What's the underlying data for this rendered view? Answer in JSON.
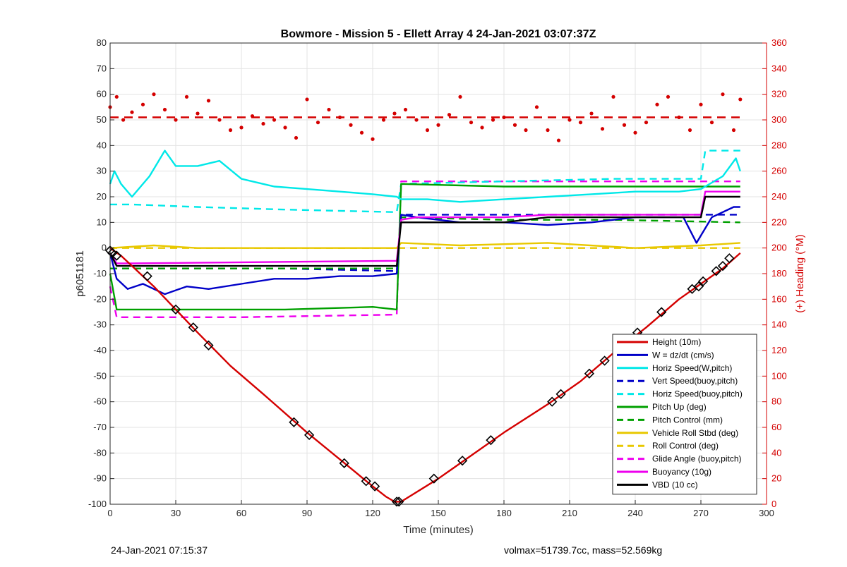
{
  "footer": {
    "left_text": "24-Jan-2021 07:15:37",
    "right_text": "volmax=51739.7cc, mass=52.569kg"
  },
  "chart_data": {
    "type": "line",
    "title": "Bowmore - Mission 5 - Ellett Array 4 24-Jan-2021 03:07:37Z",
    "xlabel": "Time (minutes)",
    "ylabel": "p6051181",
    "y2label": "(+) Heading (°M)",
    "xlim": [
      0,
      300
    ],
    "ylim": [
      -100,
      80
    ],
    "y2lim": [
      0,
      360
    ],
    "xticks": [
      0,
      30,
      60,
      90,
      120,
      150,
      180,
      210,
      240,
      270,
      300
    ],
    "yticks": [
      -100,
      -90,
      -80,
      -70,
      -60,
      -50,
      -40,
      -30,
      -20,
      -10,
      0,
      10,
      20,
      30,
      40,
      50,
      60,
      70,
      80
    ],
    "y2ticks": [
      0,
      20,
      40,
      60,
      80,
      100,
      120,
      140,
      160,
      180,
      200,
      220,
      240,
      260,
      280,
      300,
      320,
      340,
      360
    ],
    "grid": true,
    "legend_position": "bottom-right",
    "colors": {
      "height": "#d40000",
      "w": "#0000c8",
      "cyan": "#00e8e8",
      "green": "#00a000",
      "yellow": "#e8c800",
      "magenta": "#ee00ee",
      "black": "#000000",
      "right_axis": "#d40000"
    },
    "series": [
      {
        "name": "Height (10m)",
        "style": "solid",
        "color": "#d40000",
        "x": [
          0,
          5,
          20,
          40,
          55,
          70,
          90,
          110,
          120,
          126,
          130,
          133,
          150,
          165,
          180,
          200,
          215,
          230,
          245,
          260,
          270,
          280,
          288
        ],
        "y": [
          0,
          -3,
          -15,
          -33,
          -46,
          -57,
          -72,
          -86,
          -93,
          -97,
          -99,
          -99,
          -90,
          -81,
          -72,
          -61,
          -52,
          -41,
          -31,
          -20,
          -14,
          -8,
          -2
        ]
      },
      {
        "name": "W = dz/dt (cm/s)",
        "style": "solid",
        "color": "#0000c8",
        "x": [
          0,
          3,
          8,
          15,
          25,
          35,
          45,
          60,
          75,
          90,
          105,
          120,
          131,
          133,
          140,
          160,
          180,
          200,
          220,
          240,
          262,
          268,
          275,
          285,
          288
        ],
        "y": [
          -2,
          -12,
          -16,
          -14,
          -18,
          -15,
          -16,
          -14,
          -12,
          -12,
          -11,
          -11,
          -10,
          13,
          12,
          10,
          10,
          9,
          10,
          12,
          12,
          2,
          12,
          16,
          16
        ]
      },
      {
        "name": "Horiz Speed(W,pitch)",
        "style": "solid",
        "color": "#00e8e8",
        "x": [
          0,
          2,
          5,
          10,
          18,
          25,
          30,
          40,
          50,
          60,
          75,
          90,
          105,
          120,
          131,
          133,
          145,
          160,
          180,
          200,
          220,
          240,
          260,
          270,
          280,
          286,
          288
        ],
        "y": [
          25,
          30,
          25,
          20,
          28,
          38,
          32,
          32,
          34,
          27,
          24,
          23,
          22,
          21,
          20,
          19,
          19,
          18,
          19,
          20,
          21,
          22,
          22,
          23,
          28,
          35,
          30
        ]
      },
      {
        "name": "Vert Speed(buoy,pitch)",
        "style": "dashed",
        "color": "#0000c8",
        "x": [
          0,
          10,
          40,
          80,
          131,
          133,
          288
        ],
        "y": [
          -8,
          -8,
          -8,
          -8,
          -9,
          13,
          13
        ]
      },
      {
        "name": "Horiz Speed(buoy,pitch)",
        "style": "dashed",
        "color": "#00e8e8",
        "x": [
          0,
          10,
          40,
          80,
          131,
          133,
          180,
          230,
          270,
          272,
          288
        ],
        "y": [
          17,
          17,
          16,
          15,
          14,
          25,
          26,
          27,
          27,
          38,
          38
        ]
      },
      {
        "name": "Pitch Up (deg)",
        "style": "solid",
        "color": "#00a000",
        "x": [
          0,
          3,
          10,
          40,
          80,
          120,
          131,
          133,
          180,
          230,
          270,
          288
        ],
        "y": [
          -10,
          -24,
          -24,
          -24,
          -24,
          -23,
          -24,
          25,
          24,
          24,
          24,
          24
        ]
      },
      {
        "name": "Pitch Control (mm)",
        "style": "dashed",
        "color": "#00a000",
        "x": [
          0,
          10,
          60,
          131,
          133,
          180,
          230,
          288
        ],
        "y": [
          -8,
          -8,
          -8,
          -8,
          12,
          11,
          11,
          10
        ]
      },
      {
        "name": "Vehicle Roll Stbd (deg)",
        "style": "solid",
        "color": "#e8c800",
        "x": [
          0,
          20,
          40,
          60,
          90,
          120,
          131,
          133,
          160,
          200,
          240,
          270,
          288
        ],
        "y": [
          0,
          1,
          0,
          0,
          0,
          0,
          0,
          2,
          1,
          2,
          0,
          1,
          2
        ]
      },
      {
        "name": "Roll Control (deg)",
        "style": "dashed",
        "color": "#e8c800",
        "x": [
          0,
          60,
          131,
          133,
          288
        ],
        "y": [
          0,
          0,
          0,
          0,
          0
        ]
      },
      {
        "name": "Glide Angle (buoy,pitch)",
        "style": "dashed",
        "color": "#ee00ee",
        "x": [
          0,
          3,
          10,
          60,
          131,
          133,
          200,
          270,
          288
        ],
        "y": [
          -15,
          -27,
          -27,
          -27,
          -26,
          26,
          26,
          26,
          26
        ]
      },
      {
        "name": "Buoyancy (10g)",
        "style": "solid",
        "color": "#ee00ee",
        "x": [
          0,
          3,
          10,
          131,
          133,
          140,
          180,
          200,
          270,
          272,
          288
        ],
        "y": [
          -2,
          -6,
          -6,
          -5,
          11,
          12,
          12,
          13,
          13,
          22,
          22
        ]
      },
      {
        "name": "VBD (10 cc)",
        "style": "solid",
        "color": "#000000",
        "x": [
          0,
          3,
          10,
          131,
          133,
          180,
          200,
          270,
          272,
          288
        ],
        "y": [
          -2,
          -7,
          -7,
          -7,
          10,
          10,
          12,
          12,
          20,
          20
        ]
      }
    ],
    "heading": {
      "axis": "right",
      "color": "#d40000",
      "reference_line": 302,
      "x": [
        0,
        3,
        6,
        10,
        15,
        20,
        25,
        30,
        35,
        40,
        45,
        50,
        55,
        60,
        65,
        70,
        75,
        80,
        85,
        90,
        95,
        100,
        105,
        110,
        115,
        120,
        125,
        130,
        135,
        140,
        145,
        150,
        155,
        160,
        165,
        170,
        175,
        180,
        185,
        190,
        195,
        200,
        205,
        210,
        215,
        220,
        225,
        230,
        235,
        240,
        245,
        250,
        255,
        260,
        265,
        270,
        275,
        280,
        285,
        288
      ],
      "y": [
        310,
        318,
        300,
        306,
        312,
        320,
        308,
        300,
        318,
        305,
        315,
        300,
        292,
        294,
        303,
        297,
        300,
        294,
        286,
        316,
        298,
        308,
        302,
        296,
        290,
        285,
        300,
        305,
        308,
        300,
        292,
        296,
        304,
        318,
        298,
        294,
        300,
        302,
        296,
        292,
        310,
        292,
        284,
        300,
        298,
        305,
        293,
        318,
        296,
        290,
        298,
        312,
        318,
        302,
        292,
        312,
        298,
        320,
        292,
        316
      ]
    },
    "markers": {
      "x": [
        0,
        1,
        3,
        17,
        30,
        38,
        45,
        84,
        91,
        107,
        117,
        121,
        131,
        132,
        148,
        161,
        174,
        202,
        206,
        219,
        226,
        241,
        252,
        266,
        269,
        271,
        277,
        280,
        283
      ],
      "y": [
        -1,
        -2,
        -3,
        -11,
        -24,
        -31,
        -38,
        -68,
        -73,
        -84,
        -91,
        -93,
        -99,
        -99,
        -90,
        -83,
        -75,
        -60,
        -57,
        -49,
        -44,
        -33,
        -25,
        -16,
        -15,
        -13,
        -9,
        -7,
        -4
      ]
    }
  }
}
